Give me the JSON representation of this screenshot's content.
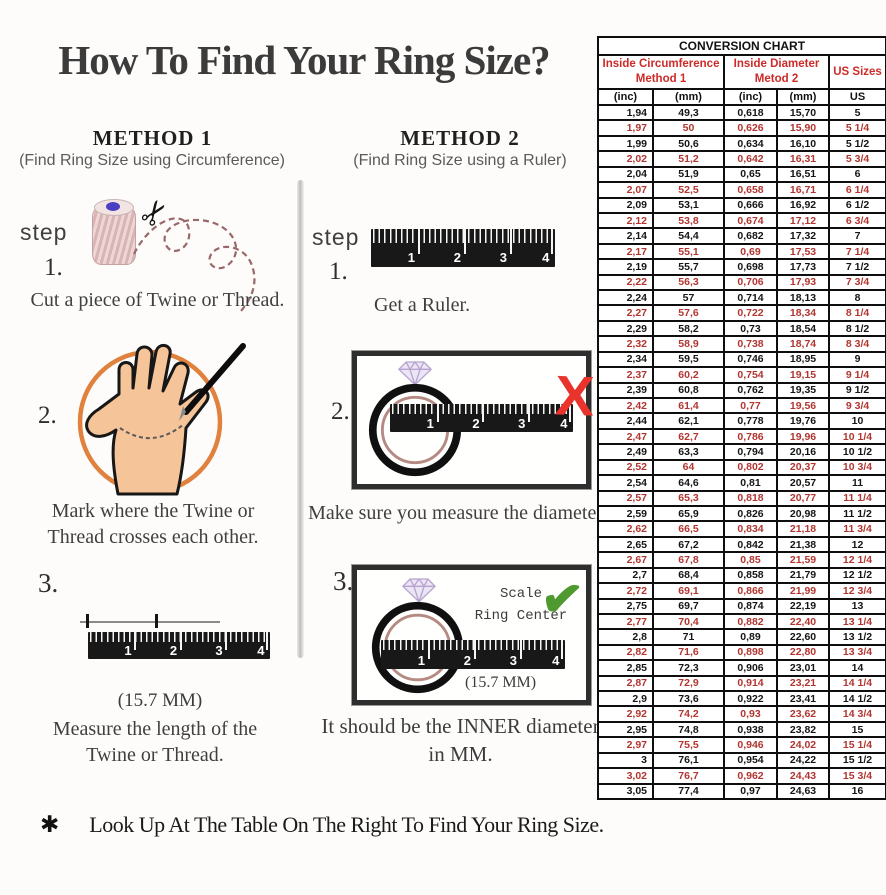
{
  "title": "How To Find Your Ring Size?",
  "methods": [
    {
      "heading": "METHOD 1",
      "subheading": "(Find Ring Size using Circumference)",
      "step_label": "step",
      "steps": [
        {
          "num": "1.",
          "caption": "Cut a piece of Twine or Thread."
        },
        {
          "num": "2.",
          "caption": "Mark where the Twine or Thread crosses each other."
        },
        {
          "num": "3.",
          "caption": "Measure the length of the Twine or Thread.",
          "measurement": "(15.7 MM)"
        }
      ]
    },
    {
      "heading": "METHOD 2",
      "subheading": "(Find Ring Size using a Ruler)",
      "step_label": "step",
      "steps": [
        {
          "num": "1.",
          "caption": "Get a Ruler."
        },
        {
          "num": "2.",
          "caption": "Make sure you measure the diameter."
        },
        {
          "num": "3.",
          "caption_line1": "It should be the INNER diameter",
          "caption_line2": "in MM.",
          "scale_note_line1": "Scale",
          "scale_note_line2": "Ring Center",
          "measurement": "(15.7 MM)"
        }
      ]
    }
  ],
  "ruler_numbers": [
    "1",
    "2",
    "3",
    "4"
  ],
  "marks": {
    "wrong": "X",
    "right": "✔"
  },
  "footer": {
    "bullet": "✱",
    "text": "Look Up At The Table On The Right To Find Your Ring Size."
  },
  "colors": {
    "header_red": "#cd2a28",
    "row_red": "#b23530",
    "x_red": "#e8342c",
    "check_green": "#4e9a2e",
    "circle_orange": "#e0813d"
  },
  "chart_data": {
    "type": "table",
    "title": "CONVERSION CHART",
    "group_headers": [
      {
        "line1": "Inside Circumference",
        "line2": "Method 1"
      },
      {
        "line1": "Inside Diameter",
        "line2": "Metod 2"
      },
      {
        "single": "US Sizes"
      }
    ],
    "unit_headers": [
      "(inc)",
      "(mm)",
      "(inc)",
      "(mm)",
      "US"
    ],
    "rows": [
      [
        "1,94",
        "49,3",
        "0,618",
        "15,70",
        "5"
      ],
      [
        "1,97",
        "50",
        "0,626",
        "15,90",
        "5 1/4"
      ],
      [
        "1,99",
        "50,6",
        "0,634",
        "16,10",
        "5 1/2"
      ],
      [
        "2,02",
        "51,2",
        "0,642",
        "16,31",
        "5 3/4"
      ],
      [
        "2,04",
        "51,9",
        "0,65",
        "16,51",
        "6"
      ],
      [
        "2,07",
        "52,5",
        "0,658",
        "16,71",
        "6 1/4"
      ],
      [
        "2,09",
        "53,1",
        "0,666",
        "16,92",
        "6 1/2"
      ],
      [
        "2,12",
        "53,8",
        "0,674",
        "17,12",
        "6 3/4"
      ],
      [
        "2,14",
        "54,4",
        "0,682",
        "17,32",
        "7"
      ],
      [
        "2,17",
        "55,1",
        "0,69",
        "17,53",
        "7 1/4"
      ],
      [
        "2,19",
        "55,7",
        "0,698",
        "17,73",
        "7 1/2"
      ],
      [
        "2,22",
        "56,3",
        "0,706",
        "17,93",
        "7 3/4"
      ],
      [
        "2,24",
        "57",
        "0,714",
        "18,13",
        "8"
      ],
      [
        "2,27",
        "57,6",
        "0,722",
        "18,34",
        "8 1/4"
      ],
      [
        "2,29",
        "58,2",
        "0,73",
        "18,54",
        "8 1/2"
      ],
      [
        "2,32",
        "58,9",
        "0,738",
        "18,74",
        "8 3/4"
      ],
      [
        "2,34",
        "59,5",
        "0,746",
        "18,95",
        "9"
      ],
      [
        "2,37",
        "60,2",
        "0,754",
        "19,15",
        "9 1/4"
      ],
      [
        "2,39",
        "60,8",
        "0,762",
        "19,35",
        "9 1/2"
      ],
      [
        "2,42",
        "61,4",
        "0,77",
        "19,56",
        "9 3/4"
      ],
      [
        "2,44",
        "62,1",
        "0,778",
        "19,76",
        "10"
      ],
      [
        "2,47",
        "62,7",
        "0,786",
        "19,96",
        "10 1/4"
      ],
      [
        "2,49",
        "63,3",
        "0,794",
        "20,16",
        "10 1/2"
      ],
      [
        "2,52",
        "64",
        "0,802",
        "20,37",
        "10 3/4"
      ],
      [
        "2,54",
        "64,6",
        "0,81",
        "20,57",
        "11"
      ],
      [
        "2,57",
        "65,3",
        "0,818",
        "20,77",
        "11 1/4"
      ],
      [
        "2,59",
        "65,9",
        "0,826",
        "20,98",
        "11 1/2"
      ],
      [
        "2,62",
        "66,5",
        "0,834",
        "21,18",
        "11 3/4"
      ],
      [
        "2,65",
        "67,2",
        "0,842",
        "21,38",
        "12"
      ],
      [
        "2,67",
        "67,8",
        "0,85",
        "21,59",
        "12 1/4"
      ],
      [
        "2,7",
        "68,4",
        "0,858",
        "21,79",
        "12 1/2"
      ],
      [
        "2,72",
        "69,1",
        "0,866",
        "21,99",
        "12 3/4"
      ],
      [
        "2,75",
        "69,7",
        "0,874",
        "22,19",
        "13"
      ],
      [
        "2,77",
        "70,4",
        "0,882",
        "22,40",
        "13 1/4"
      ],
      [
        "2,8",
        "71",
        "0,89",
        "22,60",
        "13 1/2"
      ],
      [
        "2,82",
        "71,6",
        "0,898",
        "22,80",
        "13 3/4"
      ],
      [
        "2,85",
        "72,3",
        "0,906",
        "23,01",
        "14"
      ],
      [
        "2,87",
        "72,9",
        "0,914",
        "23,21",
        "14 1/4"
      ],
      [
        "2,9",
        "73,6",
        "0,922",
        "23,41",
        "14 1/2"
      ],
      [
        "2,92",
        "74,2",
        "0,93",
        "23,62",
        "14 3/4"
      ],
      [
        "2,95",
        "74,8",
        "0,938",
        "23,82",
        "15"
      ],
      [
        "2,97",
        "75,5",
        "0,946",
        "24,02",
        "15 1/4"
      ],
      [
        "3",
        "76,1",
        "0,954",
        "24,22",
        "15 1/2"
      ],
      [
        "3,02",
        "76,7",
        "0,962",
        "24,43",
        "15 3/4"
      ],
      [
        "3,05",
        "77,4",
        "0,97",
        "24,63",
        "16"
      ]
    ]
  }
}
